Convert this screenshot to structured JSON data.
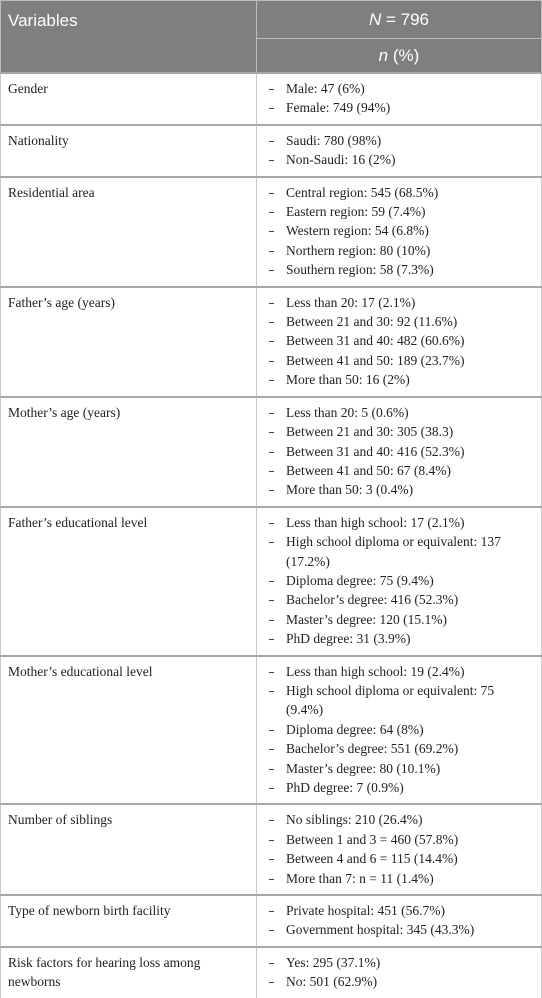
{
  "header": {
    "variables": "Variables",
    "n_total_symbol": "N",
    "n_total_rest": " = 796",
    "n_pct_symbol": "n",
    "n_pct_rest": " (%)"
  },
  "rows": [
    {
      "variable": "Gender",
      "items": [
        "Male: 47 (6%)",
        "Female: 749 (94%)"
      ]
    },
    {
      "variable": "Nationality",
      "items": [
        "Saudi: 780 (98%)",
        "Non-Saudi: 16 (2%)"
      ]
    },
    {
      "variable": "Residential area",
      "items": [
        "Central region: 545 (68.5%)",
        "Eastern region: 59 (7.4%)",
        "Western region: 54 (6.8%)",
        "Northern region: 80 (10%)",
        "Southern region: 58 (7.3%)"
      ]
    },
    {
      "variable": "Father’s age (years)",
      "items": [
        "Less than 20: 17 (2.1%)",
        "Between 21 and 30: 92 (11.6%)",
        "Between 31 and 40: 482 (60.6%)",
        "Between 41 and 50: 189 (23.7%)",
        "More than 50: 16 (2%)"
      ]
    },
    {
      "variable": "Mother’s age (years)",
      "items": [
        "Less than 20: 5 (0.6%)",
        "Between 21 and 30: 305 (38.3)",
        "Between 31 and 40: 416 (52.3%)",
        "Between 41 and 50: 67 (8.4%)",
        "More than 50: 3 (0.4%)"
      ]
    },
    {
      "variable": "Father’s educational level",
      "items": [
        "Less than high school: 17 (2.1%)",
        "High school diploma or equivalent: 137 (17.2%)",
        "Diploma degree: 75 (9.4%)",
        "Bachelor’s degree: 416 (52.3%)",
        "Master’s degree: 120 (15.1%)",
        "PhD degree: 31 (3.9%)"
      ]
    },
    {
      "variable": "Mother’s educational level",
      "items": [
        "Less than high school: 19 (2.4%)",
        "High school diploma or equivalent: 75 (9.4%)",
        "Diploma degree: 64 (8%)",
        "Bachelor’s degree: 551 (69.2%)",
        "Master’s degree: 80 (10.1%)",
        "PhD degree: 7 (0.9%)"
      ]
    },
    {
      "variable": "Number of siblings",
      "items": [
        "No siblings: 210 (26.4%)",
        "Between 1 and 3 = 460 (57.8%)",
        "Between 4 and 6 = 115 (14.4%)",
        "More than 7: n = 11 (1.4%)"
      ]
    },
    {
      "variable": "Type of newborn birth facility",
      "items": [
        "Private hospital: 451 (56.7%)",
        "Government hospital: 345 (43.3%)"
      ]
    },
    {
      "variable": "Risk factors for hearing loss among newborns",
      "items": [
        "Yes: 295 (37.1%)",
        "No: 501 (62.9%)"
      ]
    }
  ]
}
